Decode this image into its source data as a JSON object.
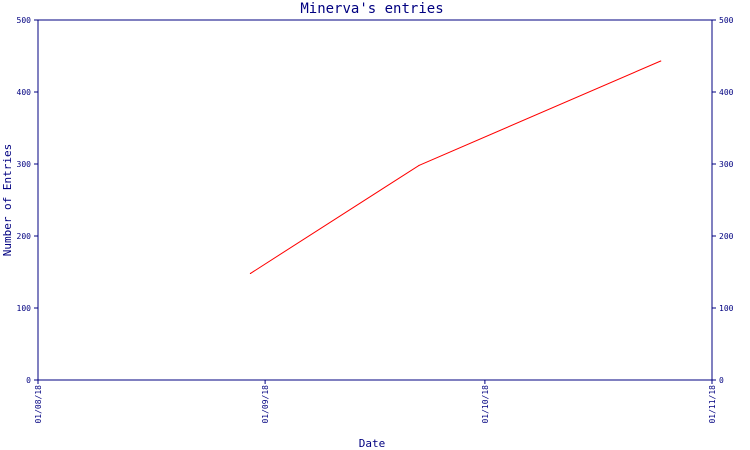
{
  "chart_data": {
    "type": "line",
    "title": "Minerva's entries",
    "xlabel": "Date",
    "ylabel": "Number of Entries",
    "x_ticks": [
      "01/08/18",
      "01/09/18",
      "01/10/18",
      "01/11/18"
    ],
    "y_ticks": [
      "0",
      "100",
      "200",
      "300",
      "400",
      "500"
    ],
    "ylim": [
      0,
      500
    ],
    "xlim": [
      "2018-08-01",
      "2018-11-01"
    ],
    "grid": false,
    "series": [
      {
        "color": "#ff0000",
        "points": [
          {
            "x": "2018-08-30",
            "y": 148
          },
          {
            "x": "2018-09-22",
            "y": 298
          },
          {
            "x": "2018-10-25",
            "y": 443
          }
        ]
      }
    ],
    "axis_color": "#000080",
    "right_axis": true
  }
}
